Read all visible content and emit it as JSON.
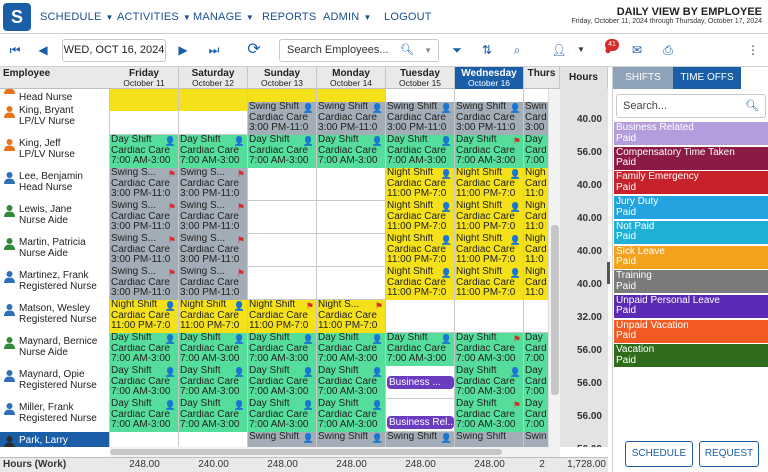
{
  "nav": {
    "logo_letter": "S",
    "menu": [
      {
        "label": "SCHEDULE",
        "caret": "▼"
      },
      {
        "label": "ACTIVITIES",
        "caret": "▼"
      },
      {
        "label": "MANAGE",
        "caret": "▼"
      },
      {
        "label": "REPORTS",
        "caret": ""
      },
      {
        "label": "ADMIN",
        "caret": "▼"
      },
      {
        "label": "LOGOUT",
        "caret": ""
      }
    ],
    "view_title": "DAILY VIEW BY EMPLOYEE",
    "view_subtitle": "Friday, October 11, 2024 through Thursday, October 17, 2024"
  },
  "toolbar": {
    "date_value": "WED, OCT 16, 2024",
    "search_placeholder": "Search Employees...",
    "alert_count": "41"
  },
  "grid": {
    "employee_header": "Employee",
    "days": [
      {
        "day": "Friday",
        "date": "October 11",
        "today": false
      },
      {
        "day": "Saturday",
        "date": "October 12",
        "today": false
      },
      {
        "day": "Sunday",
        "date": "October 13",
        "today": false
      },
      {
        "day": "Monday",
        "date": "October 14",
        "today": false
      },
      {
        "day": "Tuesday",
        "date": "October 15",
        "today": false
      },
      {
        "day": "Wednesday",
        "date": "October 16",
        "today": true
      },
      {
        "day": "Thurs",
        "date": "",
        "today": false
      }
    ],
    "hours_header": "Hours",
    "rows": [
      {
        "name": "",
        "role": "Head Nurse",
        "avatar": "#e8731a",
        "hours": "",
        "cells": [
          {
            "l1": "11:00 PM-7:0",
            "l2": "",
            "l3": "",
            "color": "#f5e11a",
            "icon": ""
          },
          {
            "l1": "11:00 PM-7:0",
            "l2": "",
            "l3": "",
            "color": "#f5e11a",
            "icon": ""
          },
          {
            "l1": "11:00 PM-7:0",
            "l2": "",
            "l3": "",
            "color": "#f5e11a",
            "icon": ""
          },
          {
            "l1": "11:00 PM-7:0",
            "l2": "",
            "l3": "",
            "color": "#f5e11a",
            "icon": ""
          },
          null,
          null,
          null
        ]
      },
      {
        "name": "King, Bryant",
        "role": "LP/LV Nurse",
        "avatar": "#e8731a",
        "hours": "40.00",
        "cells": [
          null,
          null,
          {
            "l1": "Swing Shift",
            "l2": "Cardiac Care",
            "l3": "3:00 PM-11:0",
            "color": "#a2adb7",
            "icon": "👤"
          },
          {
            "l1": "Swing Shift",
            "l2": "Cardiac Care",
            "l3": "3:00 PM-11:0",
            "color": "#a2adb7",
            "icon": "👤"
          },
          {
            "l1": "Swing Shift",
            "l2": "Cardiac Care",
            "l3": "3:00 PM-11:0",
            "color": "#a2adb7",
            "icon": "👤"
          },
          {
            "l1": "Swing Shift",
            "l2": "Cardiac Care",
            "l3": "3:00 PM-11:0",
            "color": "#a2adb7",
            "icon": "👤"
          },
          {
            "l1": "Swin",
            "l2": "Card",
            "l3": "3:00",
            "color": "#a2adb7",
            "icon": ""
          }
        ]
      },
      {
        "name": "King, Jeff",
        "role": "LP/LV Nurse",
        "avatar": "#e8731a",
        "hours": "56.00",
        "cells": [
          {
            "l1": "Day Shift",
            "l2": "Cardiac Care",
            "l3": "7:00 AM-3:00",
            "color": "#55de9b",
            "icon": "👤"
          },
          {
            "l1": "Day Shift",
            "l2": "Cardiac Care",
            "l3": "7:00 AM-3:00",
            "color": "#55de9b",
            "icon": "👤"
          },
          {
            "l1": "Day Shift",
            "l2": "Cardiac Care",
            "l3": "7:00 AM-3:00",
            "color": "#55de9b",
            "icon": "👤"
          },
          {
            "l1": "Day Shift",
            "l2": "Cardiac Care",
            "l3": "7:00 AM-3:00",
            "color": "#55de9b",
            "icon": "👤"
          },
          {
            "l1": "Day Shift",
            "l2": "Cardiac Care",
            "l3": "7:00 AM-3:00",
            "color": "#55de9b",
            "icon": "👤"
          },
          {
            "l1": "Day Shift",
            "l2": "Cardiac Care",
            "l3": "7:00 AM-3:00",
            "color": "#55de9b",
            "icon": "⚑"
          },
          {
            "l1": "Day",
            "l2": "Card",
            "l3": "7:00",
            "color": "#55de9b",
            "icon": ""
          }
        ]
      },
      {
        "name": "Lee, Benjamin",
        "role": "Head Nurse",
        "avatar": "#2f6fb5",
        "hours": "40.00",
        "cells": [
          {
            "l1": "Swing S...",
            "l2": "Cardiac Care",
            "l3": "3:00 PM-11:0",
            "color": "#a2adb7",
            "icon": "⚑"
          },
          {
            "l1": "Swing S...",
            "l2": "Cardiac Care",
            "l3": "3:00 PM-11:0",
            "color": "#a2adb7",
            "icon": "⚑"
          },
          null,
          null,
          {
            "l1": "Night Shift",
            "l2": "Cardiac Care",
            "l3": "11:00 PM-7:0",
            "color": "#f5e11a",
            "icon": "👤"
          },
          {
            "l1": "Night Shift",
            "l2": "Cardiac Care",
            "l3": "11:00 PM-7:0",
            "color": "#f5e11a",
            "icon": "👤"
          },
          {
            "l1": "Nigh",
            "l2": "Card",
            "l3": "11:0",
            "color": "#f5e11a",
            "icon": ""
          }
        ]
      },
      {
        "name": "Lewis, Jane",
        "role": "Nurse Aide",
        "avatar": "#2f8a3a",
        "hours": "40.00",
        "cells": [
          {
            "l1": "Swing S...",
            "l2": "Cardiac Care",
            "l3": "3:00 PM-11:0",
            "color": "#a2adb7",
            "icon": "⚑"
          },
          {
            "l1": "Swing S...",
            "l2": "Cardiac Care",
            "l3": "3:00 PM-11:0",
            "color": "#a2adb7",
            "icon": "⚑"
          },
          null,
          null,
          {
            "l1": "Night Shift",
            "l2": "Cardiac Care",
            "l3": "11:00 PM-7:0",
            "color": "#f5e11a",
            "icon": "👤"
          },
          {
            "l1": "Night Shift",
            "l2": "Cardiac Care",
            "l3": "11:00 PM-7:0",
            "color": "#f5e11a",
            "icon": "👤"
          },
          {
            "l1": "Nigh",
            "l2": "Card",
            "l3": "11:0",
            "color": "#f5e11a",
            "icon": ""
          }
        ]
      },
      {
        "name": "Martin, Patricia",
        "role": "Nurse Aide",
        "avatar": "#2f8a3a",
        "hours": "40.00",
        "cells": [
          {
            "l1": "Swing S...",
            "l2": "Cardiac Care",
            "l3": "3:00 PM-11:0",
            "color": "#a2adb7",
            "icon": "⚑"
          },
          {
            "l1": "Swing S...",
            "l2": "Cardiac Care",
            "l3": "3:00 PM-11:0",
            "color": "#a2adb7",
            "icon": "⚑"
          },
          null,
          null,
          {
            "l1": "Night Shift",
            "l2": "Cardiac Care",
            "l3": "11:00 PM-7:0",
            "color": "#f5e11a",
            "icon": "👤"
          },
          {
            "l1": "Night Shift",
            "l2": "Cardiac Care",
            "l3": "11:00 PM-7:0",
            "color": "#f5e11a",
            "icon": "👤"
          },
          {
            "l1": "Nigh",
            "l2": "Card",
            "l3": "11:0",
            "color": "#f5e11a",
            "icon": ""
          }
        ]
      },
      {
        "name": "Martinez, Frank",
        "role": "Registered Nurse",
        "avatar": "#2f6fb5",
        "hours": "40.00",
        "cells": [
          {
            "l1": "Swing S...",
            "l2": "Cardiac Care",
            "l3": "3:00 PM-11:0",
            "color": "#a2adb7",
            "icon": "⚑"
          },
          {
            "l1": "Swing S...",
            "l2": "Cardiac Care",
            "l3": "3:00 PM-11:0",
            "color": "#a2adb7",
            "icon": "⚑"
          },
          null,
          null,
          {
            "l1": "Night Shift",
            "l2": "Cardiac Care",
            "l3": "11:00 PM-7:0",
            "color": "#f5e11a",
            "icon": "👤"
          },
          {
            "l1": "Night Shift",
            "l2": "Cardiac Care",
            "l3": "11:00 PM-7:0",
            "color": "#f5e11a",
            "icon": "👤"
          },
          {
            "l1": "Nigh",
            "l2": "Card",
            "l3": "11:0",
            "color": "#f5e11a",
            "icon": ""
          }
        ]
      },
      {
        "name": "Matson, Wesley",
        "role": "Registered Nurse",
        "avatar": "#2f6fb5",
        "hours": "32.00",
        "cells": [
          {
            "l1": "Night Shift",
            "l2": "Cardiac Care",
            "l3": "11:00 PM-7:0",
            "color": "#f5e11a",
            "icon": "👤"
          },
          {
            "l1": "Night Shift",
            "l2": "Cardiac Care",
            "l3": "11:00 PM-7:0",
            "color": "#f5e11a",
            "icon": "👤"
          },
          {
            "l1": "Night Shift",
            "l2": "Cardiac Care",
            "l3": "11:00 PM-7:0",
            "color": "#f5e11a",
            "icon": "⚑"
          },
          {
            "l1": "Night S...",
            "l2": "Cardiac Care",
            "l3": "11:00 PM-7:0",
            "color": "#f5e11a",
            "icon": "⚑"
          },
          null,
          null,
          null
        ]
      },
      {
        "name": "Maynard, Bernice",
        "role": "Nurse Aide",
        "avatar": "#2f8a3a",
        "hours": "56.00",
        "cells": [
          {
            "l1": "Day Shift",
            "l2": "Cardiac Care",
            "l3": "7:00 AM-3:00",
            "color": "#55de9b",
            "icon": "👤"
          },
          {
            "l1": "Day Shift",
            "l2": "Cardiac Care",
            "l3": "7:00 AM-3:00",
            "color": "#55de9b",
            "icon": "👤"
          },
          {
            "l1": "Day Shift",
            "l2": "Cardiac Care",
            "l3": "7:00 AM-3:00",
            "color": "#55de9b",
            "icon": "👤"
          },
          {
            "l1": "Day Shift",
            "l2": "Cardiac Care",
            "l3": "7:00 AM-3:00",
            "color": "#55de9b",
            "icon": "👤"
          },
          {
            "l1": "Day Shift",
            "l2": "Cardiac Care",
            "l3": "7:00 AM-3:00",
            "color": "#55de9b",
            "icon": "👤"
          },
          {
            "l1": "Day Shift",
            "l2": "Cardiac Care",
            "l3": "7:00 AM-3:00",
            "color": "#55de9b",
            "icon": "⚑"
          },
          {
            "l1": "Day",
            "l2": "Card",
            "l3": "7:00",
            "color": "#55de9b",
            "icon": ""
          }
        ]
      },
      {
        "name": "Maynard, Opie",
        "role": "Registered Nurse",
        "avatar": "#2f6fb5",
        "hours": "56.00",
        "cells": [
          {
            "l1": "Day Shift",
            "l2": "Cardiac Care",
            "l3": "7:00 AM-3:00",
            "color": "#55de9b",
            "icon": "👤"
          },
          {
            "l1": "Day Shift",
            "l2": "Cardiac Care",
            "l3": "7:00 AM-3:00",
            "color": "#55de9b",
            "icon": "👤"
          },
          {
            "l1": "Day Shift",
            "l2": "Cardiac Care",
            "l3": "7:00 AM-3:00",
            "color": "#55de9b",
            "icon": "👤"
          },
          {
            "l1": "Day Shift",
            "l2": "Cardiac Care",
            "l3": "7:00 AM-3:00",
            "color": "#55de9b",
            "icon": "👤"
          },
          {
            "l1": "Business ...",
            "l2": "",
            "l3": "",
            "color": "#6a3cbf",
            "icon": "✎"
          },
          {
            "l1": "Day Shift",
            "l2": "Cardiac Care",
            "l3": "7:00 AM-3:00",
            "color": "#55de9b",
            "icon": "👤"
          },
          {
            "l1": "Day",
            "l2": "Card",
            "l3": "7:00",
            "color": "#55de9b",
            "icon": ""
          }
        ]
      },
      {
        "name": "Miller, Frank",
        "role": "Registered Nurse",
        "avatar": "#2f6fb5",
        "hours": "56.00",
        "cells": [
          {
            "l1": "Day Shift",
            "l2": "Cardiac Care",
            "l3": "7:00 AM-3:00",
            "color": "#55de9b",
            "icon": "👤"
          },
          {
            "l1": "Day Shift",
            "l2": "Cardiac Care",
            "l3": "7:00 AM-3:00",
            "color": "#55de9b",
            "icon": "👤"
          },
          {
            "l1": "Day Shift",
            "l2": "Cardiac Care",
            "l3": "7:00 AM-3:00",
            "color": "#55de9b",
            "icon": "👤"
          },
          {
            "l1": "Day Shift",
            "l2": "Cardiac Care",
            "l3": "7:00 AM-3:00",
            "color": "#55de9b",
            "icon": "👤"
          },
          {
            "l1": "Business Rel...",
            "l2": "",
            "l3": "",
            "color": "#6a3cbf",
            "icon": ""
          },
          {
            "l1": "Day Shift",
            "l2": "Cardiac Care",
            "l3": "7:00 AM-3:00",
            "color": "#55de9b",
            "icon": "⚑"
          },
          {
            "l1": "Day",
            "l2": "Card",
            "l3": "7:00",
            "color": "#55de9b",
            "icon": ""
          }
        ]
      },
      {
        "name": "Park, Larry",
        "role": "Technologist",
        "avatar": "#2b2b2b",
        "hours": "56.00",
        "selected": true,
        "cells": [
          null,
          null,
          {
            "l1": "Swing Shift",
            "l2": "",
            "l3": "",
            "color": "#a2adb7",
            "icon": "👤"
          },
          {
            "l1": "Swing Shift",
            "l2": "",
            "l3": "",
            "color": "#a2adb7",
            "icon": "👤"
          },
          {
            "l1": "Swing Shift",
            "l2": "",
            "l3": "",
            "color": "#a2adb7",
            "icon": "👤"
          },
          {
            "l1": "Swing Shift",
            "l2": "",
            "l3": "",
            "color": "#a2adb7",
            "icon": ""
          },
          {
            "l1": "Swin",
            "l2": "",
            "l3": "",
            "color": "#a2adb7",
            "icon": ""
          }
        ]
      }
    ],
    "footer": {
      "label": "Hours (Work)",
      "totals": [
        "248.00",
        "240.00",
        "248.00",
        "248.00",
        "248.00",
        "248.00",
        "2"
      ],
      "grand_total": "1,728.00"
    }
  },
  "panel": {
    "tab_shifts": "SHIFTS",
    "tab_timeoffs": "TIME OFFS",
    "search_placeholder": "Search...",
    "timeoffs": [
      {
        "name": "Business Related",
        "type": "Paid",
        "color": "#b49ddc"
      },
      {
        "name": "Compensatory Time Taken",
        "type": "Paid",
        "color": "#8b1a45"
      },
      {
        "name": "Family Emergency",
        "type": "Paid",
        "color": "#c7222b"
      },
      {
        "name": "Jury Duty",
        "type": "Paid",
        "color": "#23a4e0"
      },
      {
        "name": "Not Paid",
        "type": "Paid",
        "color": "#1fb0d6"
      },
      {
        "name": "Sick Leave",
        "type": "Paid",
        "color": "#f4a11d"
      },
      {
        "name": "Training",
        "type": "Paid",
        "color": "#7b7b7b"
      },
      {
        "name": "Unpaid Personal Leave",
        "type": "Paid",
        "color": "#5a2ab5"
      },
      {
        "name": "Unpaid Vacation",
        "type": "Paid",
        "color": "#f15a22"
      },
      {
        "name": "Vacation",
        "type": "Paid",
        "color": "#2e6b1a"
      }
    ],
    "btn_schedule": "SCHEDULE",
    "btn_request": "REQUEST"
  }
}
